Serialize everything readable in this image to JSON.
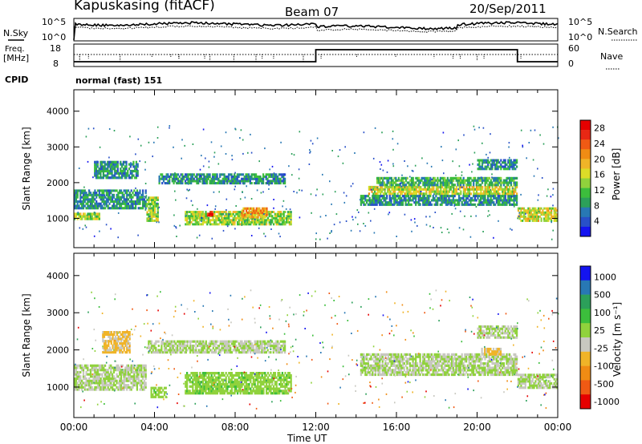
{
  "header": {
    "station": "Kapuskasing (fitACF)",
    "beam": "Beam 07",
    "date": "20/Sep/2011"
  },
  "strip_labels": {
    "nsky": "N.Sky",
    "nsky_top": "10^5",
    "nsky_bottom": "10^0",
    "freq": "Freq.",
    "freq_unit": "[MHz]",
    "freq_top": "18",
    "freq_bottom": "8",
    "cpid": "CPID",
    "cpid_value": "normal (fast) 151",
    "nsearch": "N.Search",
    "nsearch_top": "10^5",
    "nsearch_bottom": "10^0",
    "nave": "Nave",
    "nave_top": "60",
    "nave_bottom": "0"
  },
  "colors": {
    "frame": "#000000",
    "background": "#ffffff",
    "ground_scatter": "#c0c0b8",
    "nosignal": "#ffffff"
  },
  "chart_data": [
    {
      "type": "heatmap",
      "panel": "power",
      "xlabel": "Time UT",
      "ylabel": "Slant Range [km]",
      "x_ticks": [
        "00:00",
        "04:00",
        "08:00",
        "12:00",
        "16:00",
        "20:00",
        "00:00"
      ],
      "xlim_hours": [
        0,
        24
      ],
      "y_ticks": [
        1000,
        2000,
        3000,
        4000
      ],
      "ylim": [
        180,
        4600
      ],
      "colorbar": {
        "label": "Power [dB]",
        "ticks": [
          "4",
          "8",
          "12",
          "16",
          "20",
          "24",
          "28"
        ],
        "range": [
          0,
          30
        ],
        "colors": [
          "#1414f0",
          "#2850c8",
          "#2878b4",
          "#2ca05a",
          "#3cbe3c",
          "#90d23c",
          "#dcdc28",
          "#f0b428",
          "#f08c14",
          "#f05a14",
          "#e82814",
          "#e60000"
        ]
      },
      "bands": [
        {
          "t0": 0.0,
          "t1": 1.3,
          "r0": 950,
          "r1": 1150,
          "value": 14
        },
        {
          "t0": 0.0,
          "t1": 3.6,
          "r0": 1250,
          "r1": 1800,
          "value": 8
        },
        {
          "t0": 1.0,
          "t1": 3.2,
          "r0": 2100,
          "r1": 2600,
          "value": 8
        },
        {
          "t0": 3.6,
          "t1": 4.2,
          "r0": 900,
          "r1": 1600,
          "value": 14
        },
        {
          "t0": 4.2,
          "t1": 10.5,
          "r0": 1950,
          "r1": 2250,
          "value": 8
        },
        {
          "t0": 5.5,
          "t1": 10.8,
          "r0": 800,
          "r1": 1200,
          "value": 14
        },
        {
          "t0": 8.3,
          "t1": 9.6,
          "r0": 1000,
          "r1": 1300,
          "value": 20
        },
        {
          "t0": 6.6,
          "t1": 6.9,
          "r0": 1050,
          "r1": 1200,
          "value": 28
        },
        {
          "t0": 14.6,
          "t1": 22.0,
          "r0": 1650,
          "r1": 1900,
          "value": 16
        },
        {
          "t0": 15.0,
          "t1": 22.0,
          "r0": 1900,
          "r1": 2150,
          "value": 10
        },
        {
          "t0": 14.2,
          "t1": 22.0,
          "r0": 1350,
          "r1": 1650,
          "value": 8
        },
        {
          "t0": 20.0,
          "t1": 22.0,
          "r0": 2350,
          "r1": 2650,
          "value": 8
        },
        {
          "t0": 22.0,
          "t1": 24.0,
          "r0": 900,
          "r1": 1300,
          "value": 16
        }
      ]
    },
    {
      "type": "heatmap",
      "panel": "velocity",
      "xlabel": "Time UT",
      "ylabel": "Slant Range [km]",
      "x_ticks": [
        "00:00",
        "04:00",
        "08:00",
        "12:00",
        "16:00",
        "20:00",
        "00:00"
      ],
      "xlim_hours": [
        0,
        24
      ],
      "y_ticks": [
        1000,
        2000,
        3000,
        4000
      ],
      "ylim": [
        180,
        4600
      ],
      "colorbar": {
        "label": "Velocity [m s⁻¹]",
        "ticks": [
          "1000",
          "500",
          "100",
          "25",
          "-25",
          "-100",
          "-500",
          "-1000"
        ],
        "range": [
          -1200,
          1200
        ],
        "colors": [
          "#e60000",
          "#f05a14",
          "#f08c14",
          "#f0b428",
          "#c8c8c0",
          "#90d23c",
          "#3cbe3c",
          "#2ca05a",
          "#2878b4",
          "#1414f0"
        ]
      },
      "bands": [
        {
          "t0": 0.0,
          "t1": 3.6,
          "r0": 900,
          "r1": 1600,
          "value": 0
        },
        {
          "t0": 1.4,
          "t1": 2.8,
          "r0": 1900,
          "r1": 2500,
          "value": -300
        },
        {
          "t0": 3.6,
          "t1": 10.5,
          "r0": 1900,
          "r1": 2250,
          "value": 0
        },
        {
          "t0": 5.5,
          "t1": 10.8,
          "r0": 800,
          "r1": 1400,
          "value": 150
        },
        {
          "t0": 3.8,
          "t1": 4.6,
          "r0": 700,
          "r1": 1000,
          "value": 150
        },
        {
          "t0": 14.2,
          "t1": 22.0,
          "r0": 1300,
          "r1": 1900,
          "value": 0
        },
        {
          "t0": 20.2,
          "t1": 21.2,
          "r0": 1850,
          "r1": 2050,
          "value": -300
        },
        {
          "t0": 20.0,
          "t1": 22.0,
          "r0": 2300,
          "r1": 2650,
          "value": 0
        },
        {
          "t0": 22.0,
          "t1": 24.0,
          "r0": 950,
          "r1": 1350,
          "value": 0
        }
      ]
    }
  ]
}
